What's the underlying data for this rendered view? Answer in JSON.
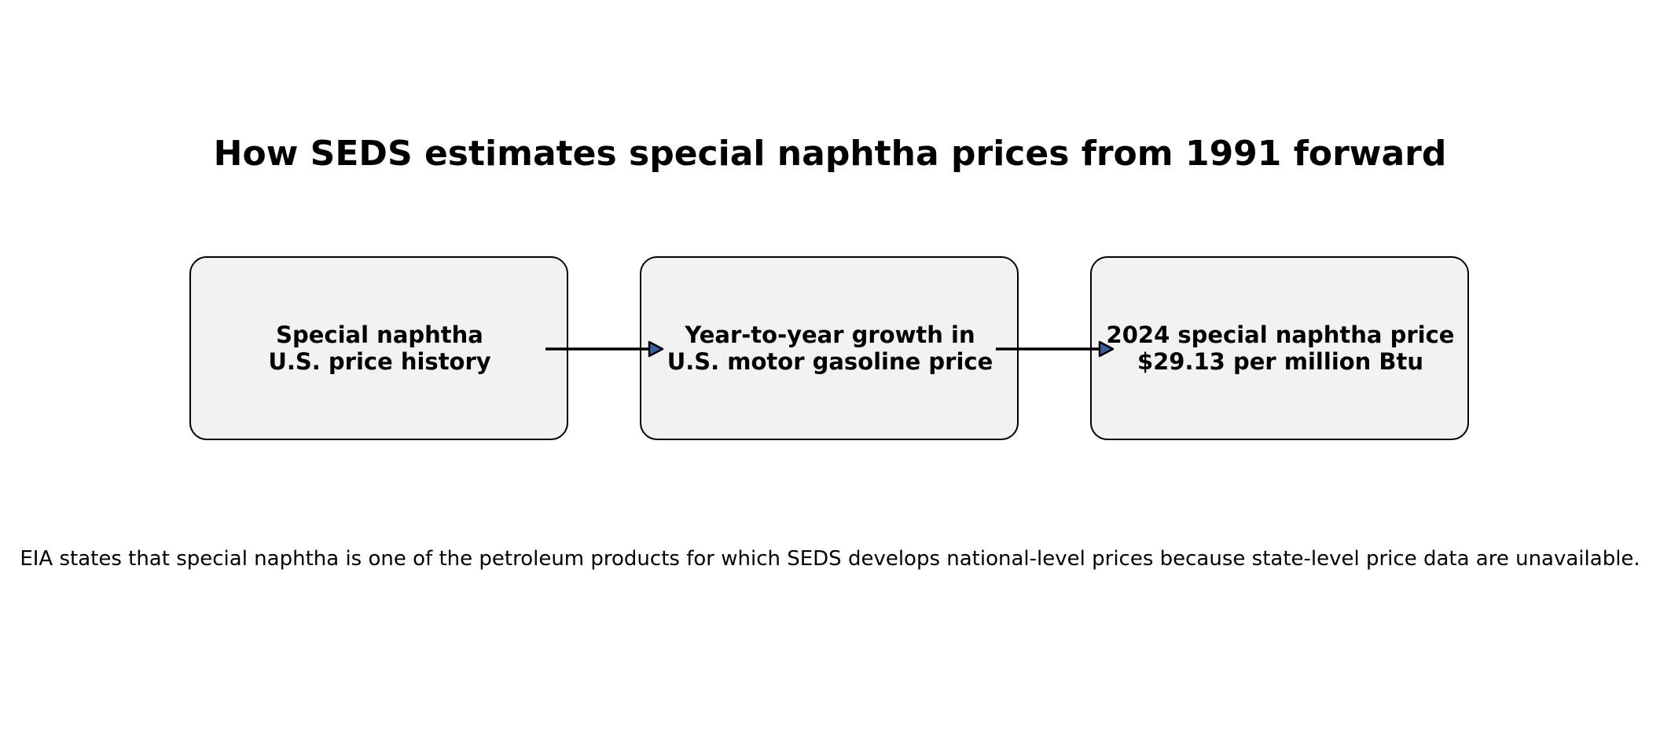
{
  "title": "How SEDS estimates special naphtha prices from 1991 forward",
  "flow": {
    "steps": [
      {
        "line1": "Special naphtha",
        "line2": "U.S. price history"
      },
      {
        "line1": "Year-to-year growth in",
        "line2": "U.S. motor gasoline price"
      },
      {
        "line1": "2024 special naphtha price",
        "line2": "$29.13 per million Btu"
      }
    ],
    "arrow_head_color": "#3a5fa0",
    "box_fill": "#f2f2f2"
  },
  "footnote": "EIA states that special naphtha is one of the petroleum products for which SEDS develops national-level prices because state-level price data are unavailable."
}
